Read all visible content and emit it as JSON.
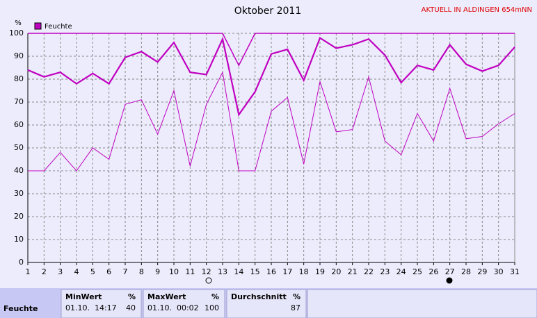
{
  "chart_data": {
    "type": "line",
    "title": "Oktober 2011",
    "subtitle": "AKTUELL IN ALDINGEN 654mNN",
    "y_label": "%",
    "x": [
      1,
      2,
      3,
      4,
      5,
      6,
      7,
      8,
      9,
      10,
      11,
      12,
      13,
      14,
      15,
      16,
      17,
      18,
      19,
      20,
      21,
      22,
      23,
      24,
      25,
      26,
      27,
      28,
      29,
      30,
      31
    ],
    "xlim": [
      1,
      31
    ],
    "xticks": [
      1,
      2,
      3,
      4,
      5,
      6,
      7,
      8,
      9,
      10,
      11,
      12,
      13,
      14,
      15,
      16,
      17,
      18,
      19,
      20,
      21,
      22,
      23,
      24,
      25,
      26,
      27,
      28,
      29,
      30,
      31
    ],
    "ylim": [
      0,
      100
    ],
    "yticks": [
      0,
      10,
      20,
      30,
      40,
      50,
      60,
      70,
      80,
      90,
      100
    ],
    "grid": true,
    "legend": "top-left",
    "series": [
      {
        "name": "Feuchte",
        "color": "#c000c0",
        "max": [
          100,
          100,
          100,
          100,
          100,
          100,
          100,
          100,
          100,
          100,
          100,
          100,
          100,
          86,
          100,
          100,
          100,
          100,
          100,
          100,
          100,
          100,
          100,
          100,
          100,
          100,
          100,
          100,
          100,
          100,
          100
        ],
        "avg": [
          84,
          81,
          83,
          78,
          82.5,
          78,
          89.5,
          92,
          87.5,
          96,
          83,
          82,
          97.5,
          64.5,
          74.5,
          91,
          93,
          79.5,
          98,
          93.5,
          95,
          97.5,
          90.5,
          78.5,
          86,
          84,
          95,
          86.5,
          83.5,
          86,
          94
        ],
        "min": [
          40,
          40,
          48,
          40,
          50,
          45,
          69,
          71,
          56,
          75,
          42,
          69,
          83,
          40,
          40,
          66,
          72,
          43,
          79,
          57,
          58,
          81,
          53,
          47,
          65,
          53,
          76,
          54,
          55,
          60.5,
          65
        ]
      }
    ]
  },
  "summary": {
    "row_label": "Feuchte",
    "columns": [
      {
        "title": "MinWert",
        "unit": "%",
        "time": "01.10.  14:17",
        "value": 40
      },
      {
        "title": "MaxWert",
        "unit": "%",
        "time": "01.10.  00:02",
        "value": 100
      },
      {
        "title": "Durchschnitt",
        "unit": "%",
        "value": 87
      }
    ]
  }
}
